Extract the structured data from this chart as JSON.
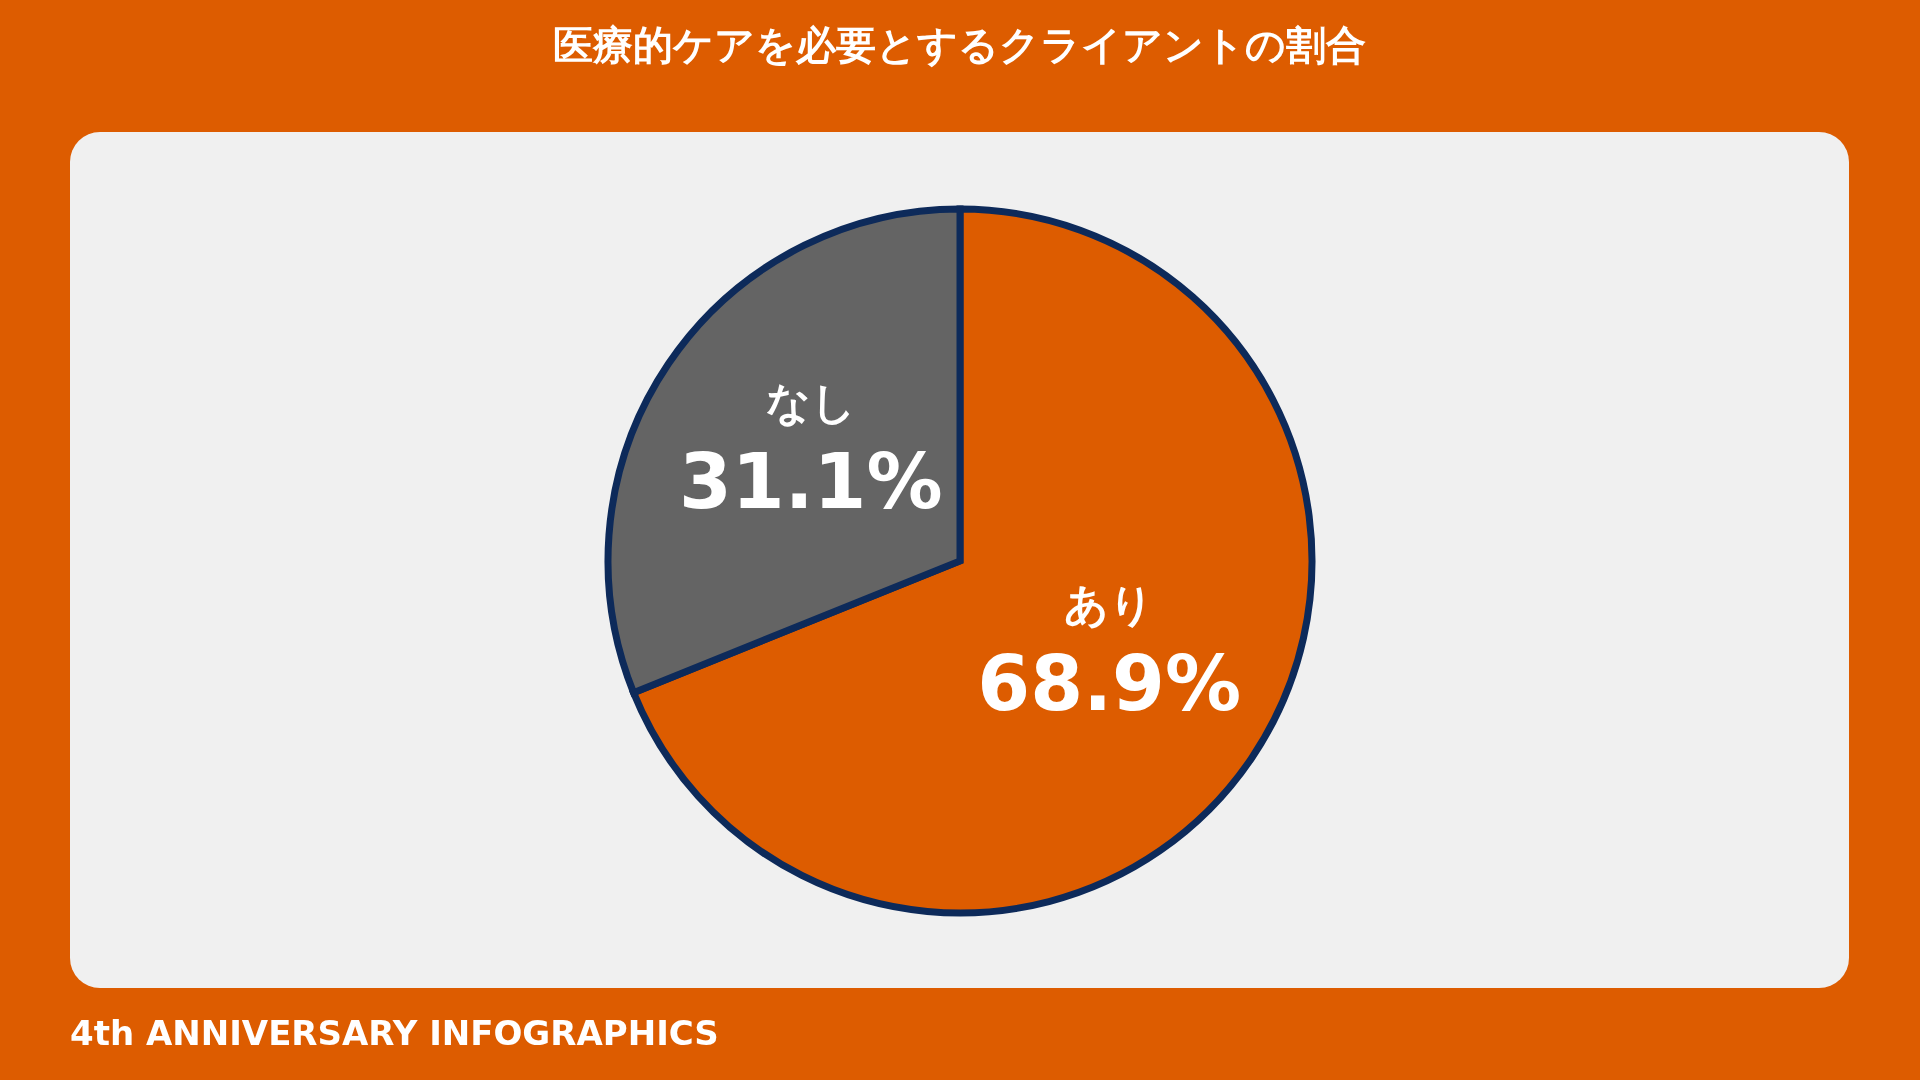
{
  "chart_data": {
    "type": "pie",
    "title": "医療的ケアを必要とするクライアントの割合",
    "categories": [
      "あり",
      "なし"
    ],
    "values": [
      68.9,
      31.1
    ],
    "colors": [
      "#dd5c00",
      "#646464"
    ],
    "value_labels": [
      "68.9%",
      "31.1%"
    ],
    "annotations": [
      "4th ANNIVERSARY INFOGRAPHICS"
    ]
  }
}
